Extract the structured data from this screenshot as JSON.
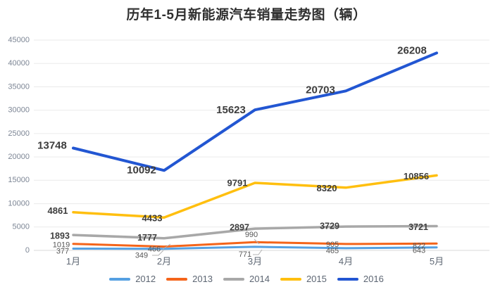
{
  "chart_data": {
    "type": "line",
    "stacked": true,
    "title": "历年1-5月新能源汽车销量走势图（辆）",
    "categories": [
      "1月",
      "2月",
      "3月",
      "4月",
      "5月"
    ],
    "yticks": [
      0,
      5000,
      10000,
      15000,
      20000,
      25000,
      30000,
      35000,
      40000,
      45000
    ],
    "ylim": [
      0,
      45000
    ],
    "grid": true,
    "legend_position": "bottom",
    "series": [
      {
        "name": "2012",
        "color": "#55A0E2",
        "values": [
          377,
          349,
          771,
          465,
          643
        ]
      },
      {
        "name": "2013",
        "color": "#F4641A",
        "values": [
          1019,
          466,
          990,
          905,
          822
        ]
      },
      {
        "name": "2014",
        "color": "#A8A8A8",
        "values": [
          1893,
          1777,
          2897,
          3729,
          3721
        ]
      },
      {
        "name": "2015",
        "color": "#FFBF0F",
        "values": [
          4861,
          4433,
          9791,
          8320,
          10856
        ]
      },
      {
        "name": "2016",
        "color": "#2256D2",
        "values": [
          13748,
          10092,
          15623,
          20703,
          26208
        ]
      }
    ]
  }
}
